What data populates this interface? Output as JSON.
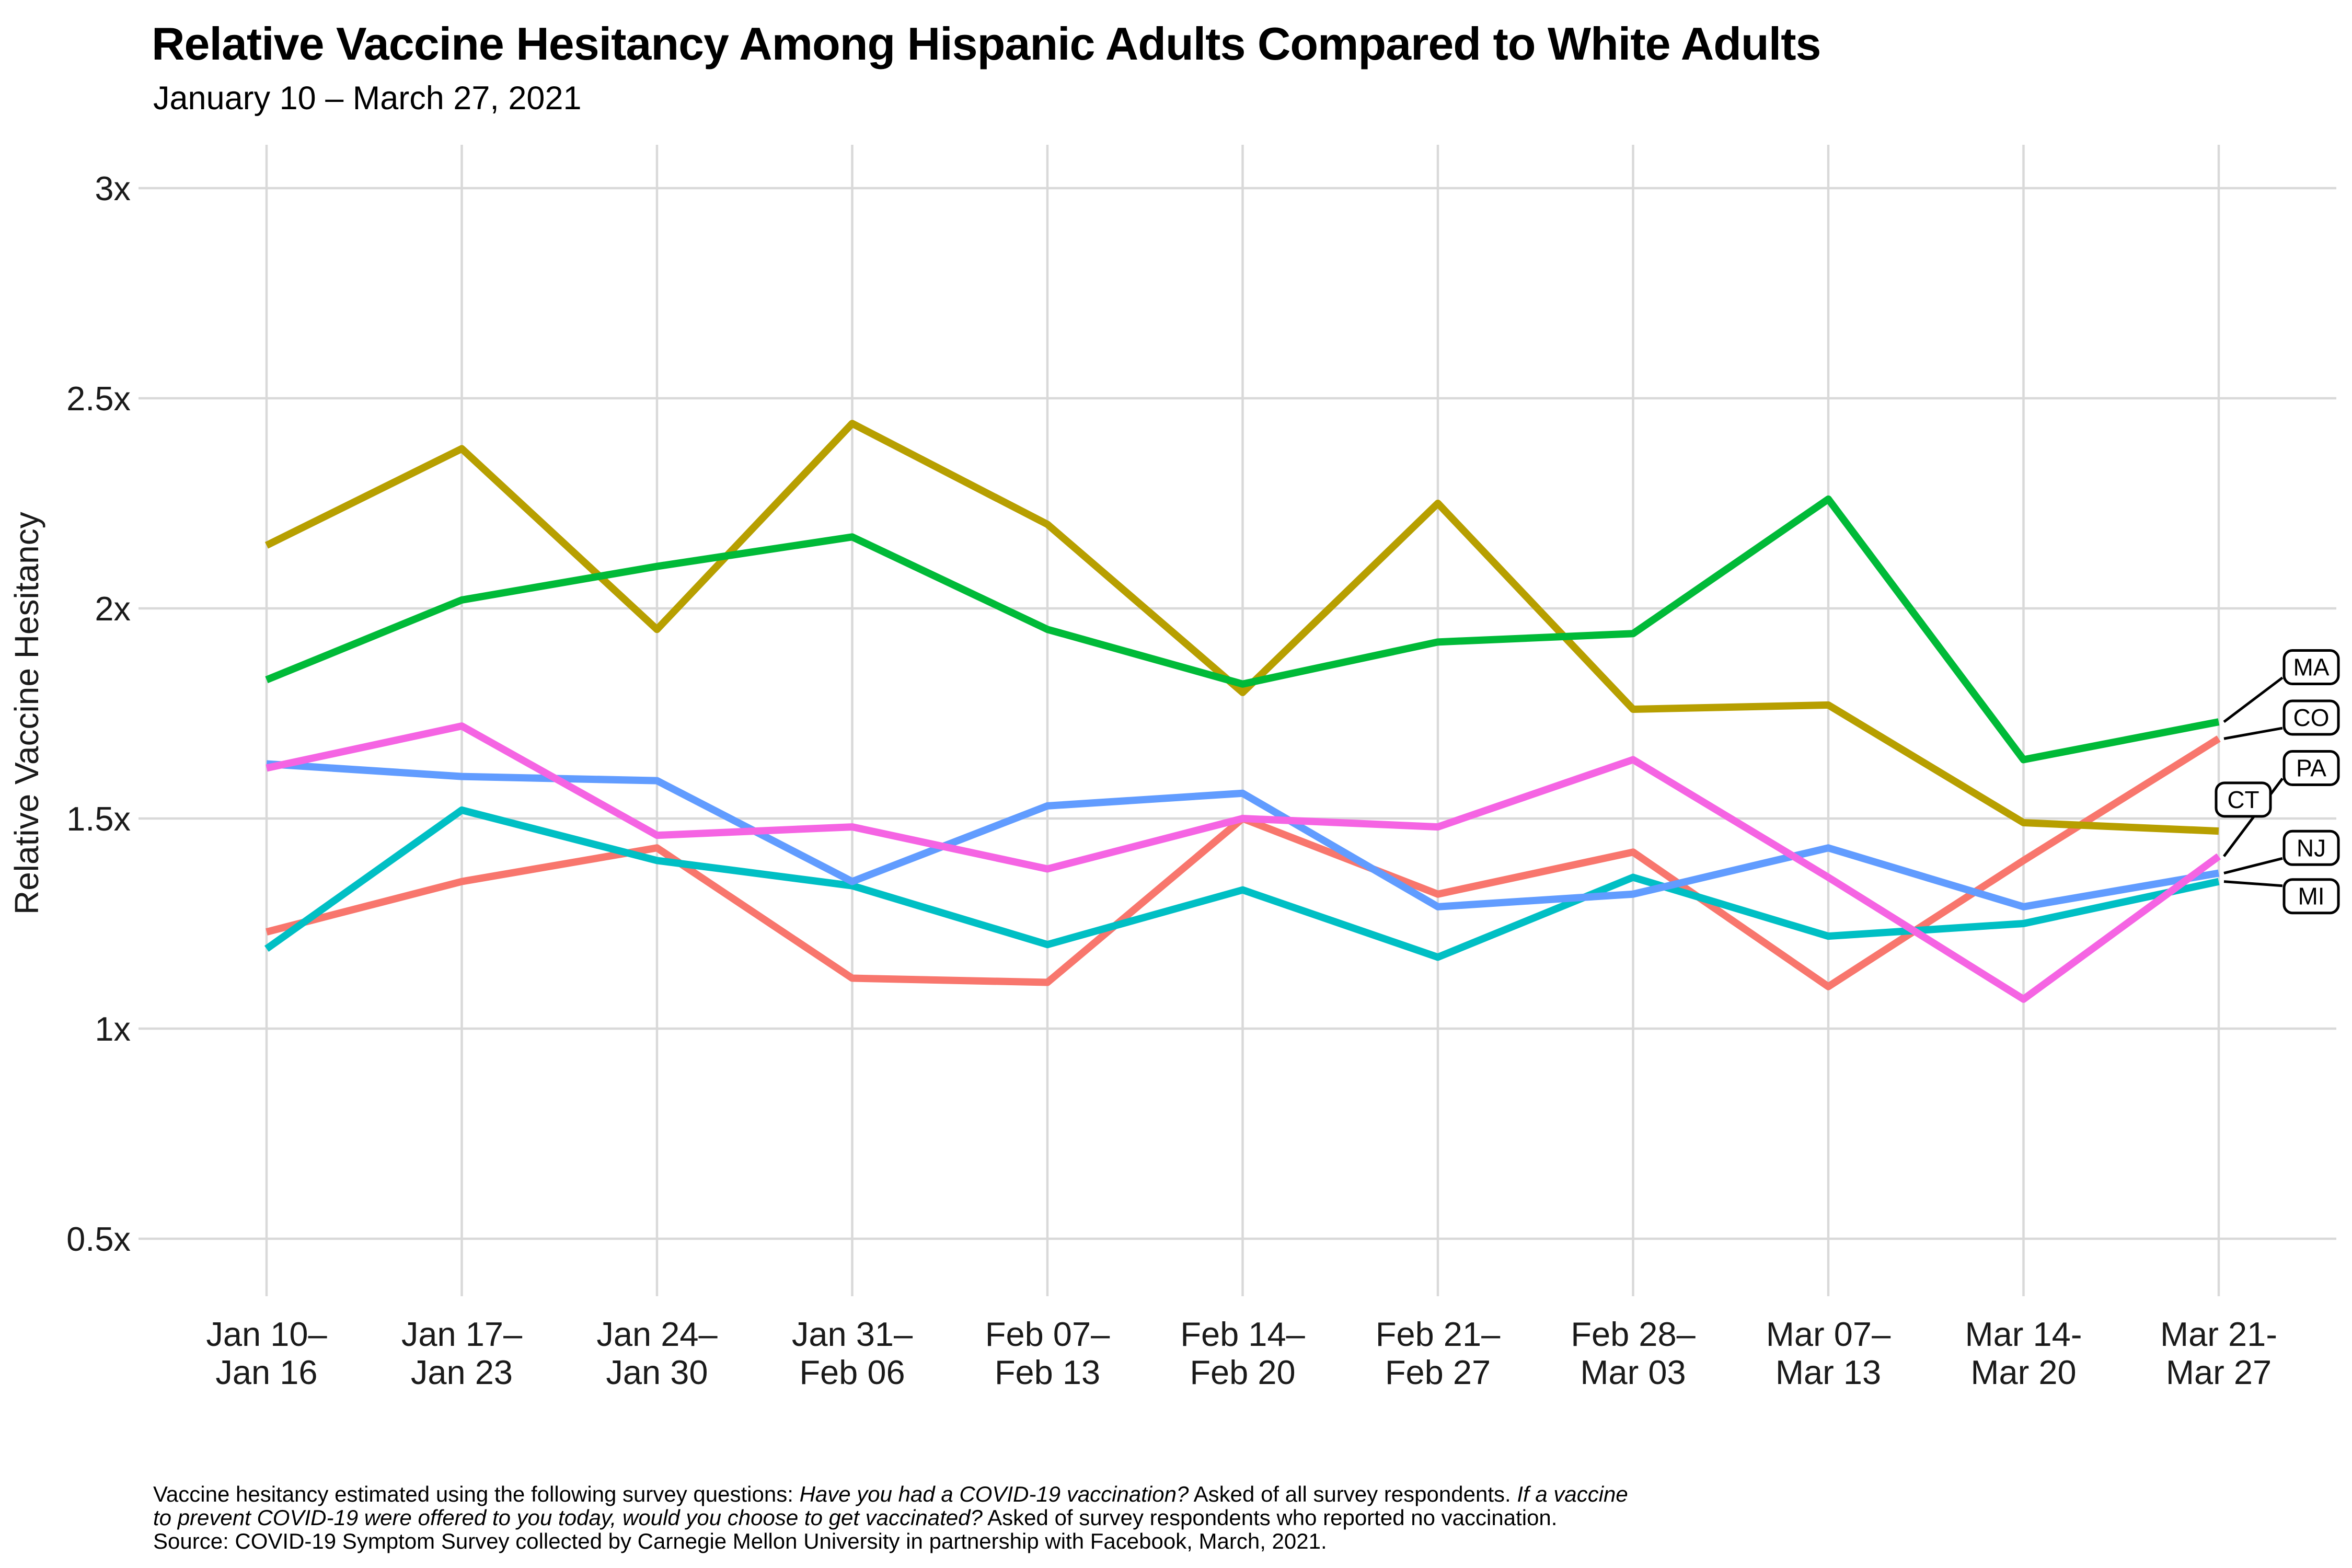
{
  "chart_data": {
    "type": "line",
    "title": "Relative Vaccine Hesitancy Among Hispanic Adults Compared to White Adults",
    "subtitle": "January 10 – March 27, 2021",
    "ylabel": "Relative Vaccine Hesitancy",
    "xlabel": "",
    "ylim": [
      0.5,
      3
    ],
    "grid": true,
    "legend_position": "direct-line-end-labels",
    "y_ticks": [
      {
        "value": 3,
        "label": "3x"
      },
      {
        "value": 2.5,
        "label": "2.5x"
      },
      {
        "value": 2,
        "label": "2x"
      },
      {
        "value": 1.5,
        "label": "1.5x"
      },
      {
        "value": 1,
        "label": "1x"
      },
      {
        "value": 0.5,
        "label": "0.5x"
      }
    ],
    "categories": [
      {
        "l1": "Jan 10–",
        "l2": "Jan 16"
      },
      {
        "l1": "Jan 17–",
        "l2": "Jan 23"
      },
      {
        "l1": "Jan 24–",
        "l2": "Jan 30"
      },
      {
        "l1": "Jan 31–",
        "l2": "Feb 06"
      },
      {
        "l1": "Feb 07–",
        "l2": "Feb 13"
      },
      {
        "l1": "Feb 14–",
        "l2": "Feb 20"
      },
      {
        "l1": "Feb 21–",
        "l2": "Feb 27"
      },
      {
        "l1": "Feb 28–",
        "l2": "Mar 03"
      },
      {
        "l1": "Mar 07–",
        "l2": "Mar 13"
      },
      {
        "l1": "Mar 14-",
        "l2": "Mar 20"
      },
      {
        "l1": "Mar 21-",
        "l2": "Mar 27"
      }
    ],
    "series": [
      {
        "name": "CO",
        "color": "#F8766D",
        "values": [
          1.23,
          1.35,
          1.43,
          1.12,
          1.11,
          1.5,
          1.32,
          1.42,
          1.1,
          1.4,
          1.69
        ]
      },
      {
        "name": "CT",
        "color": "#B79F00",
        "values": [
          2.15,
          2.38,
          1.95,
          2.44,
          2.2,
          1.8,
          2.25,
          1.76,
          1.77,
          1.49,
          1.47
        ]
      },
      {
        "name": "MA",
        "color": "#00BA38",
        "values": [
          1.83,
          2.02,
          2.1,
          2.17,
          1.95,
          1.82,
          1.92,
          1.94,
          2.26,
          1.64,
          1.73
        ]
      },
      {
        "name": "MI",
        "color": "#00BFC4",
        "values": [
          1.19,
          1.52,
          1.4,
          1.34,
          1.2,
          1.33,
          1.17,
          1.36,
          1.22,
          1.25,
          1.35
        ]
      },
      {
        "name": "NJ",
        "color": "#619CFF",
        "values": [
          1.63,
          1.6,
          1.59,
          1.35,
          1.53,
          1.56,
          1.29,
          1.32,
          1.43,
          1.29,
          1.37
        ]
      },
      {
        "name": "PA",
        "color": "#F564E3",
        "values": [
          1.62,
          1.72,
          1.46,
          1.48,
          1.38,
          1.5,
          1.48,
          1.64,
          1.36,
          1.07,
          1.41
        ]
      }
    ],
    "end_labels": [
      {
        "text": "MA",
        "box_value": 1.86,
        "end_value": 1.73,
        "leader": true,
        "col": "right"
      },
      {
        "text": "CO",
        "box_value": 1.74,
        "end_value": 1.69,
        "leader": true,
        "col": "right"
      },
      {
        "text": "PA",
        "box_value": 1.62,
        "end_value": 1.41,
        "leader": true,
        "col": "right"
      },
      {
        "text": "CT",
        "box_value": 1.545,
        "end_value": 1.47,
        "leader": false,
        "col": "inner"
      },
      {
        "text": "NJ",
        "box_value": 1.43,
        "end_value": 1.37,
        "leader": true,
        "col": "right"
      },
      {
        "text": "MI",
        "box_value": 1.315,
        "end_value": 1.35,
        "leader": true,
        "col": "right"
      }
    ],
    "style": {
      "grid_color": "#D9D9D9",
      "line_width": 14,
      "grid_width": 4.5,
      "leader_color": "#000000",
      "box_fill": "#FFFFFF",
      "box_border": "#000000"
    }
  },
  "caption": {
    "line1": [
      {
        "t": "Vaccine hesitancy estimated using the following survey questions: ",
        "i": 0
      },
      {
        "t": "Have you had a COVID-19 vaccination?",
        "i": 1
      },
      {
        "t": " Asked of all survey respondents. ",
        "i": 0
      },
      {
        "t": "If a vaccine",
        "i": 1
      }
    ],
    "line2": [
      {
        "t": "to prevent COVID-19 were offered to you today, would you choose to get vaccinated?",
        "i": 1
      },
      {
        "t": " Asked of survey respondents who reported no vaccination.",
        "i": 0
      }
    ],
    "line3": [
      {
        "t": "Source: COVID-19 Symptom Survey collected by Carnegie Mellon University in partnership with Facebook, March, 2021.",
        "i": 0
      }
    ]
  }
}
